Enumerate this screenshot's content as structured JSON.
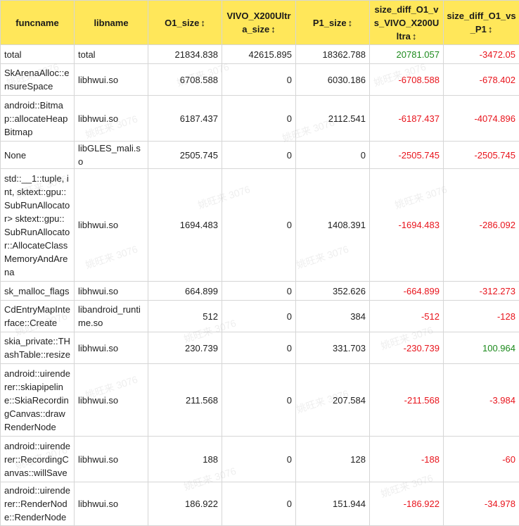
{
  "columns": [
    {
      "label": "funcname",
      "sortable": false
    },
    {
      "label": "libname",
      "sortable": false
    },
    {
      "label": "O1_size",
      "sortable": true
    },
    {
      "label": "VIVO_X200Ultra_size",
      "sortable": true
    },
    {
      "label": "P1_size",
      "sortable": true
    },
    {
      "label": "size_diff_O1_vs_VIVO_X200Ultra",
      "sortable": true
    },
    {
      "label": "size_diff_O1_vs_P1",
      "sortable": true
    }
  ],
  "sort_icon": "↕",
  "watermark_text": "姚旺来 3076",
  "colors": {
    "header_bg": "#ffe75a",
    "positive": "#1c8a1c",
    "negative": "#e8141c",
    "border": "#d6d6d6"
  },
  "rows": [
    {
      "funcname": "total",
      "libname": "total",
      "o1": "21834.838",
      "vivo": "42615.895",
      "p1": "18362.788",
      "diff_vivo": "20781.057",
      "diff_p1": "-3472.05"
    },
    {
      "funcname": "SkArenaAlloc::ensureSpace",
      "libname": "libhwui.so",
      "o1": "6708.588",
      "vivo": "0",
      "p1": "6030.186",
      "diff_vivo": "-6708.588",
      "diff_p1": "-678.402"
    },
    {
      "funcname": "android::Bitmap::allocateHeapBitmap",
      "libname": "libhwui.so",
      "o1": "6187.437",
      "vivo": "0",
      "p1": "2112.541",
      "diff_vivo": "-6187.437",
      "diff_p1": "-4074.896"
    },
    {
      "funcname": "None",
      "libname": "libGLES_mali.so",
      "o1": "2505.745",
      "vivo": "0",
      "p1": "0",
      "diff_vivo": "-2505.745",
      "diff_p1": "-2505.745"
    },
    {
      "funcname": "std::__1::tuple, int, sktext::gpu::SubRunAllocator> sktext::gpu::SubRunAllocator::AllocateClassMemoryAndArena",
      "libname": "libhwui.so",
      "o1": "1694.483",
      "vivo": "0",
      "p1": "1408.391",
      "diff_vivo": "-1694.483",
      "diff_p1": "-286.092"
    },
    {
      "funcname": "sk_malloc_flags",
      "libname": "libhwui.so",
      "o1": "664.899",
      "vivo": "0",
      "p1": "352.626",
      "diff_vivo": "-664.899",
      "diff_p1": "-312.273"
    },
    {
      "funcname": "CdEntryMapInterface::Create",
      "libname": "libandroid_runtime.so",
      "o1": "512",
      "vivo": "0",
      "p1": "384",
      "diff_vivo": "-512",
      "diff_p1": "-128"
    },
    {
      "funcname": "skia_private::THashTable::resize",
      "libname": "libhwui.so",
      "o1": "230.739",
      "vivo": "0",
      "p1": "331.703",
      "diff_vivo": "-230.739",
      "diff_p1": "100.964"
    },
    {
      "funcname": "android::uirenderer::skiapipeline::SkiaRecordingCanvas::drawRenderNode",
      "libname": "libhwui.so",
      "o1": "211.568",
      "vivo": "0",
      "p1": "207.584",
      "diff_vivo": "-211.568",
      "diff_p1": "-3.984"
    },
    {
      "funcname": "android::uirenderer::RecordingCanvas::willSave",
      "libname": "libhwui.so",
      "o1": "188",
      "vivo": "0",
      "p1": "128",
      "diff_vivo": "-188",
      "diff_p1": "-60"
    },
    {
      "funcname": "android::uirenderer::RenderNode::RenderNode",
      "libname": "libhwui.so",
      "o1": "186.922",
      "vivo": "0",
      "p1": "151.944",
      "diff_vivo": "-186.922",
      "diff_p1": "-34.978"
    }
  ]
}
